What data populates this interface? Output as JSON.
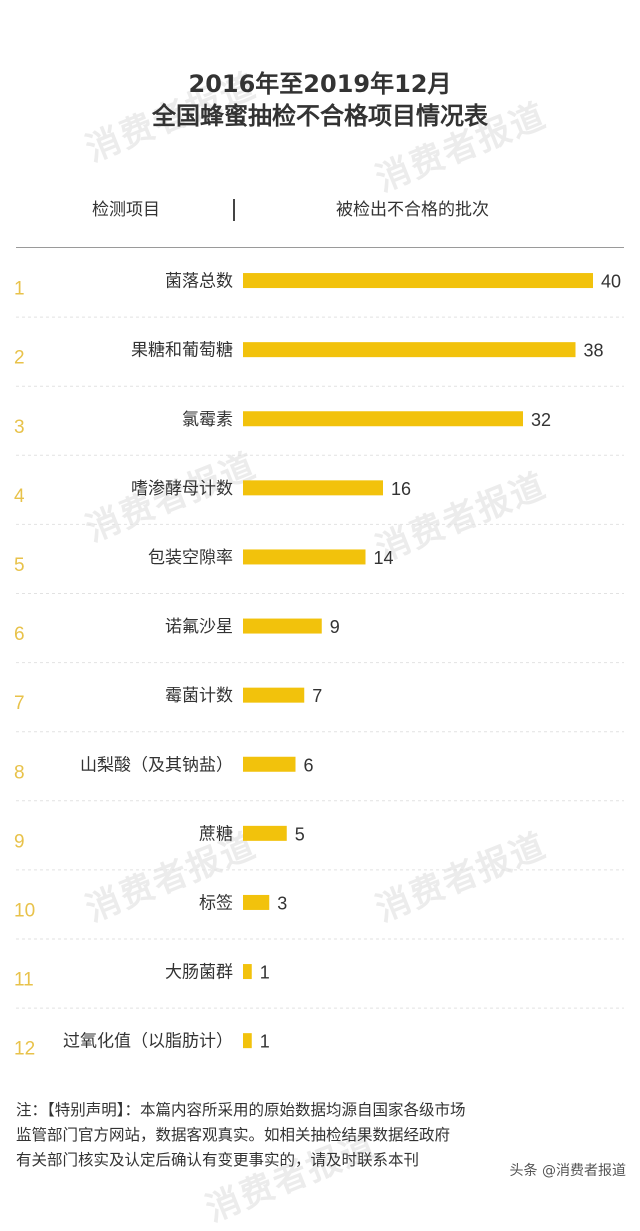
{
  "title": {
    "line1": "2016年至2019年12月",
    "line2": "全国蜂蜜抽检不合格项目情况表"
  },
  "columns": {
    "left": "检测项目",
    "right": "被检出不合格的批次"
  },
  "watermark_text": "消费者报道",
  "chart_data": {
    "type": "bar",
    "orientation": "horizontal",
    "ranks": [
      "1",
      "2",
      "3",
      "4",
      "5",
      "6",
      "7",
      "8",
      "9",
      "10",
      "11",
      "12"
    ],
    "categories": [
      "菌落总数",
      "果糖和葡萄糖",
      "氯霉素",
      "嗜渗酵母计数",
      "包装空隙率",
      "诺氟沙星",
      "霉菌计数",
      "山梨酸（及其钠盐）",
      "蔗糖",
      "标签",
      "大肠菌群",
      "过氧化值（以脂肪计）"
    ],
    "values": [
      40,
      38,
      32,
      16,
      14,
      9,
      7,
      6,
      5,
      3,
      1,
      1
    ],
    "title": "2016年至2019年12月 全国蜂蜜抽检不合格项目情况表",
    "xlabel": "被检出不合格的批次",
    "ylabel": "检测项目",
    "xlim": [
      0,
      40
    ],
    "grid": false,
    "bar_color": "#f2c20c",
    "rank_color": "#e8c24a"
  },
  "note": {
    "lines": [
      "注：【特别声明】：本篇内容所采用的原始数据均源自国家各级市场",
      "监管部门官方网站，数据客观真实。如相关抽检结果数据经政府",
      "有关部门核实及认定后确认有变更事实的，请及时联系本刊"
    ]
  },
  "source_label": "头条 @消费者报道"
}
